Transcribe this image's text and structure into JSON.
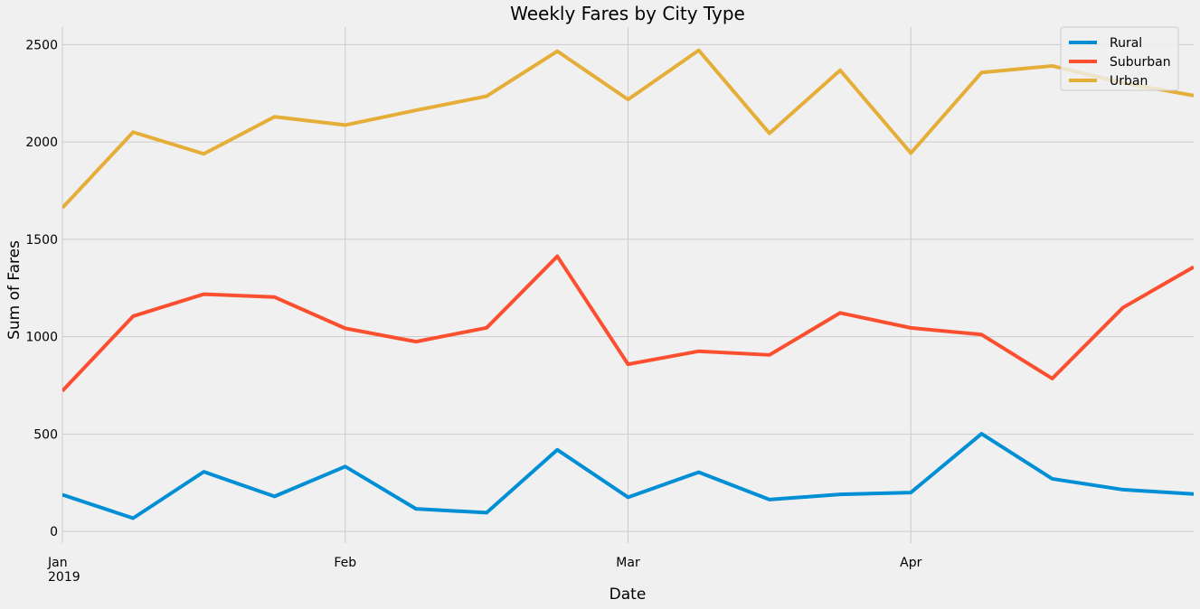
{
  "chart_data": {
    "type": "line",
    "title": "Weekly Fares by City Type",
    "xlabel": "Date",
    "ylabel": "Sum of Fares",
    "x": [
      "2019-01-06",
      "2019-01-13",
      "2019-01-20",
      "2019-01-27",
      "2019-02-03",
      "2019-02-10",
      "2019-02-17",
      "2019-02-24",
      "2019-03-03",
      "2019-03-10",
      "2019-03-17",
      "2019-03-24",
      "2019-03-31",
      "2019-04-07",
      "2019-04-14",
      "2019-04-21",
      "2019-04-28"
    ],
    "xlim": [
      "2019-01-06",
      "2019-04-28"
    ],
    "ylim": [
      -60,
      2590
    ],
    "x_ticks": [
      {
        "date": "2019-01-06",
        "label": "Jan",
        "sublabel": "2019"
      },
      {
        "date": "2019-02-03",
        "label": "Feb",
        "sublabel": ""
      },
      {
        "date": "2019-03-03",
        "label": "Mar",
        "sublabel": ""
      },
      {
        "date": "2019-03-31",
        "label": "Apr",
        "sublabel": ""
      }
    ],
    "y_ticks": [
      0,
      500,
      1000,
      1500,
      2000,
      2500
    ],
    "grid": true,
    "legend_position": "top-right",
    "series": [
      {
        "name": "Rural",
        "color": "#008fd5",
        "values": [
          187.92,
          67.65,
          306.0,
          179.69,
          333.08,
          115.8,
          95.82,
          419.06,
          175.14,
          303.94,
          163.39,
          189.76,
          199.42,
          501.24,
          269.79,
          214.14,
          191.85
        ]
      },
      {
        "name": "Suburban",
        "color": "#fc4f30",
        "values": [
          721.6,
          1105.13,
          1218.2,
          1203.28,
          1042.79,
          974.34,
          1045.5,
          1412.74,
          858.46,
          925.27,
          906.2,
          1122.2,
          1045.06,
          1010.73,
          784.82,
          1149.27,
          1357.75
        ]
      },
      {
        "name": "Urban",
        "color": "#e5ae38",
        "values": [
          1661.68,
          2050.43,
          1939.02,
          2129.51,
          2086.94,
          2162.64,
          2235.07,
          2466.29,
          2218.2,
          2470.93,
          2044.42,
          2368.37,
          1942.77,
          2356.7,
          2390.72,
          2303.8,
          2238.29
        ]
      }
    ]
  }
}
